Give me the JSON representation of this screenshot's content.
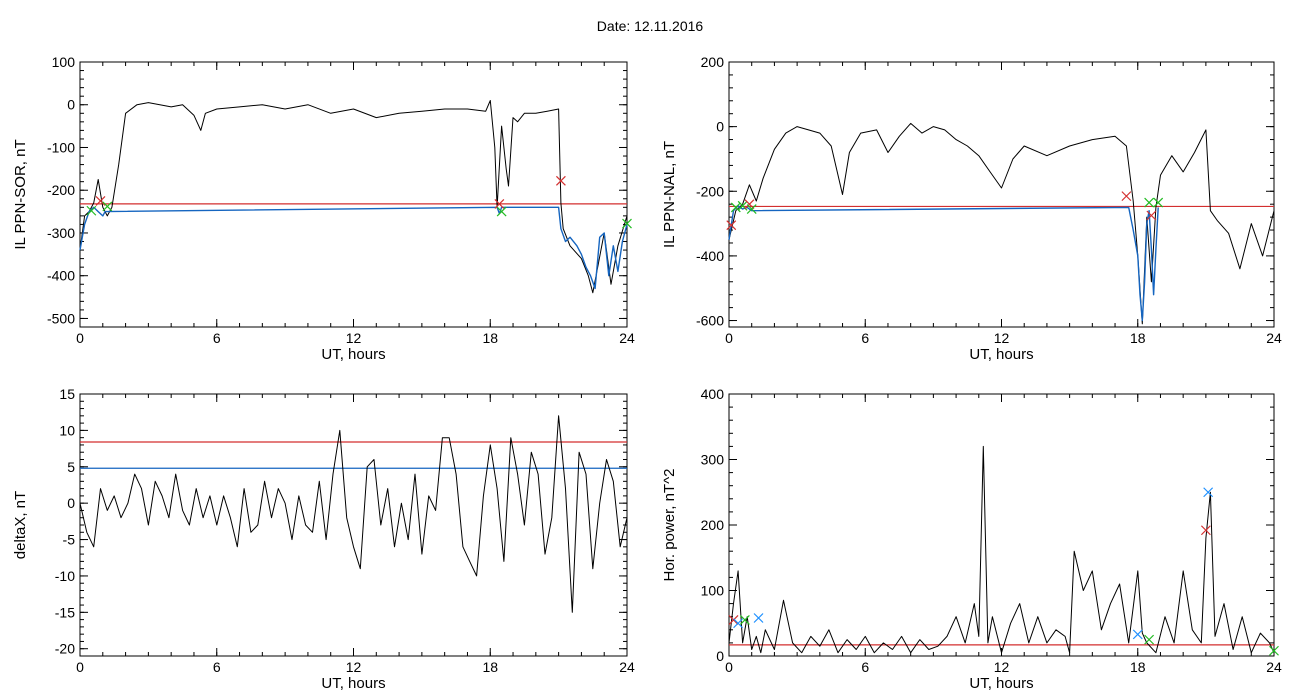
{
  "page": {
    "date_label": "Date:  12.11.2016"
  },
  "chart_data": [
    {
      "type": "line",
      "xlabel": "UT, hours",
      "ylabel": "IL PPN-SOR, nT",
      "xlim": [
        0,
        24
      ],
      "ylim": [
        -520,
        100
      ],
      "xticks": [
        0,
        6,
        12,
        18,
        24
      ],
      "yticks": [
        100,
        0,
        -100,
        -200,
        -300,
        -400,
        -500
      ],
      "grid": false,
      "legend": "none",
      "series": [
        {
          "color": "#000000",
          "x": [
            0,
            0.2,
            0.4,
            0.6,
            0.8,
            1.0,
            1.2,
            1.4,
            1.7,
            2.0,
            2.5,
            3.0,
            3.5,
            4.0,
            4.5,
            5.0,
            5.3,
            5.5,
            6.0,
            7.0,
            8.0,
            9.0,
            10.0,
            11.0,
            12.0,
            13.0,
            14.0,
            15.0,
            16.0,
            17.0,
            17.8,
            18.0,
            18.2,
            18.3,
            18.5,
            18.7,
            18.8,
            19.0,
            19.2,
            19.5,
            20.0,
            20.5,
            21.0,
            21.1,
            21.2,
            21.5,
            22.0,
            22.3,
            22.5,
            23.0,
            23.3,
            23.6,
            24.0
          ],
          "y": [
            -340,
            -260,
            -250,
            -230,
            -175,
            -240,
            -260,
            -240,
            -140,
            -20,
            0,
            5,
            0,
            -5,
            0,
            -25,
            -60,
            -20,
            -10,
            -5,
            0,
            -10,
            0,
            -20,
            -10,
            -30,
            -20,
            -15,
            -10,
            -10,
            -15,
            10,
            -100,
            -240,
            -50,
            -150,
            -190,
            -30,
            -40,
            -20,
            -20,
            -15,
            -10,
            -230,
            -290,
            -330,
            -360,
            -400,
            -440,
            -300,
            -420,
            -330,
            -260
          ]
        },
        {
          "color": "#1565c0",
          "x": [
            0,
            0.2,
            0.4,
            0.6,
            0.8,
            1.0,
            1.1,
            18.3,
            18.4,
            18.5,
            21.0,
            21.1,
            21.3,
            21.5,
            21.8,
            22.0,
            22.2,
            22.4,
            22.6,
            22.8,
            23.0,
            23.2,
            23.4,
            23.6,
            23.8,
            24.0
          ],
          "y": [
            -340,
            -280,
            -250,
            -240,
            -250,
            -260,
            -250,
            -240,
            -255,
            -240,
            -240,
            -290,
            -320,
            -310,
            -330,
            -350,
            -380,
            -400,
            -430,
            -310,
            -300,
            -400,
            -330,
            -390,
            -320,
            -280
          ]
        }
      ],
      "hlines": [
        {
          "y": -232,
          "color": "#d32f2f"
        }
      ],
      "markers": [
        {
          "x": 0.5,
          "y": -248,
          "color": "#22bb22"
        },
        {
          "x": 0.9,
          "y": -225,
          "color": "#d32f2f"
        },
        {
          "x": 1.2,
          "y": -238,
          "color": "#22bb22"
        },
        {
          "x": 18.4,
          "y": -232,
          "color": "#d32f2f"
        },
        {
          "x": 18.5,
          "y": -250,
          "color": "#22bb22"
        },
        {
          "x": 21.1,
          "y": -178,
          "color": "#d32f2f"
        },
        {
          "x": 24.0,
          "y": -278,
          "color": "#22bb22"
        }
      ]
    },
    {
      "type": "line",
      "xlabel": "UT, hours",
      "ylabel": "IL PPN-NAL, nT",
      "xlim": [
        0,
        24
      ],
      "ylim": [
        -620,
        200
      ],
      "xticks": [
        0,
        6,
        12,
        18,
        24
      ],
      "yticks": [
        200,
        0,
        -200,
        -400,
        -600
      ],
      "grid": false,
      "legend": "none",
      "series": [
        {
          "color": "#000000",
          "x": [
            0,
            0.3,
            0.6,
            0.9,
            1.2,
            1.5,
            2.0,
            2.5,
            3.0,
            3.5,
            4.0,
            4.5,
            4.8,
            5.0,
            5.3,
            5.8,
            6.5,
            7.0,
            7.5,
            8.0,
            8.5,
            9.0,
            9.5,
            10.0,
            10.5,
            11.0,
            11.5,
            12.0,
            12.5,
            13.0,
            14.0,
            15.0,
            16.0,
            17.0,
            17.5,
            17.8,
            18.0,
            18.2,
            18.4,
            18.6,
            18.8,
            19.0,
            19.5,
            20.0,
            20.5,
            21.0,
            21.2,
            21.5,
            22.0,
            22.5,
            23.0,
            23.5,
            24.0
          ],
          "y": [
            -350,
            -260,
            -240,
            -180,
            -230,
            -160,
            -70,
            -20,
            0,
            -10,
            -20,
            -60,
            -150,
            -210,
            -80,
            -20,
            -10,
            -80,
            -30,
            10,
            -20,
            0,
            -10,
            -40,
            -60,
            -90,
            -140,
            -190,
            -100,
            -60,
            -90,
            -60,
            -40,
            -30,
            -60,
            -230,
            -400,
            -610,
            -280,
            -480,
            -250,
            -150,
            -90,
            -140,
            -80,
            -10,
            -260,
            -290,
            -330,
            -440,
            -300,
            -400,
            -260
          ]
        },
        {
          "color": "#1565c0",
          "x": [
            0,
            0.2,
            0.4,
            0.6,
            0.8,
            1.0,
            17.6,
            17.8,
            18.0,
            18.1,
            18.2,
            18.3,
            18.4,
            18.5,
            18.6,
            18.7,
            18.8,
            18.9
          ],
          "y": [
            -350,
            -260,
            -245,
            -255,
            -250,
            -260,
            -250,
            -320,
            -400,
            -520,
            -600,
            -480,
            -300,
            -260,
            -380,
            -520,
            -380,
            -250
          ]
        }
      ],
      "hlines": [
        {
          "y": -247,
          "color": "#d32f2f"
        }
      ],
      "markers": [
        {
          "x": 0.1,
          "y": -305,
          "color": "#d32f2f"
        },
        {
          "x": 0.3,
          "y": -250,
          "color": "#22bb22"
        },
        {
          "x": 0.6,
          "y": -245,
          "color": "#22bb22"
        },
        {
          "x": 0.9,
          "y": -240,
          "color": "#d32f2f"
        },
        {
          "x": 1.0,
          "y": -255,
          "color": "#22bb22"
        },
        {
          "x": 17.5,
          "y": -215,
          "color": "#d32f2f"
        },
        {
          "x": 18.5,
          "y": -235,
          "color": "#22bb22"
        },
        {
          "x": 18.6,
          "y": -275,
          "color": "#d32f2f"
        },
        {
          "x": 18.9,
          "y": -235,
          "color": "#22bb22"
        }
      ]
    },
    {
      "type": "line",
      "xlabel": "UT, hours",
      "ylabel": "deltaX, nT",
      "xlim": [
        0,
        24
      ],
      "ylim": [
        -21,
        15
      ],
      "xticks": [
        0,
        6,
        12,
        18,
        24
      ],
      "yticks": [
        15,
        10,
        5,
        0,
        -5,
        -10,
        -15,
        -20
      ],
      "grid": false,
      "legend": "none",
      "series": [
        {
          "color": "#000000",
          "x": [
            0,
            0.3,
            0.6,
            0.9,
            1.2,
            1.5,
            1.8,
            2.1,
            2.4,
            2.7,
            3.0,
            3.3,
            3.6,
            3.9,
            4.2,
            4.5,
            4.8,
            5.1,
            5.4,
            5.7,
            6.0,
            6.3,
            6.6,
            6.9,
            7.2,
            7.5,
            7.8,
            8.1,
            8.4,
            8.7,
            9.0,
            9.3,
            9.6,
            9.9,
            10.2,
            10.5,
            10.8,
            11.1,
            11.4,
            11.7,
            12.0,
            12.3,
            12.6,
            12.9,
            13.2,
            13.5,
            13.8,
            14.1,
            14.4,
            14.7,
            15.0,
            15.3,
            15.6,
            15.9,
            16.2,
            16.5,
            16.8,
            17.1,
            17.4,
            17.7,
            18.0,
            18.3,
            18.6,
            18.9,
            19.2,
            19.5,
            19.8,
            20.1,
            20.4,
            20.7,
            21.0,
            21.3,
            21.6,
            21.9,
            22.2,
            22.5,
            22.8,
            23.1,
            23.4,
            23.7,
            24.0
          ],
          "y": [
            0,
            -4,
            -6,
            2,
            -1,
            1,
            -2,
            0,
            4,
            2,
            -3,
            3,
            1,
            -2,
            4,
            -1,
            -3,
            2,
            -2,
            1,
            -3,
            1,
            -2,
            -6,
            2,
            -4,
            -3,
            3,
            -2,
            2,
            0,
            -5,
            1,
            -3,
            -4,
            3,
            -5,
            4,
            10,
            -2,
            -6,
            -9,
            5,
            6,
            -3,
            2,
            -6,
            0,
            -5,
            4,
            -7,
            1,
            -1,
            9,
            9,
            4,
            -6,
            -8,
            -10,
            1,
            8,
            2,
            -8,
            9,
            4,
            -3,
            7,
            4,
            -7,
            -2,
            12,
            2,
            -15,
            7,
            4,
            -9,
            0,
            6,
            3,
            -6,
            -2
          ]
        }
      ],
      "hlines": [
        {
          "y": 8.4,
          "color": "#d32f2f"
        },
        {
          "y": 4.8,
          "color": "#1565c0"
        }
      ],
      "markers": []
    },
    {
      "type": "line",
      "xlabel": "UT, hours",
      "ylabel": "Hor. power, nT^2",
      "xlim": [
        0,
        24
      ],
      "ylim": [
        0,
        400
      ],
      "xticks": [
        0,
        6,
        12,
        18,
        24
      ],
      "yticks": [
        400,
        300,
        200,
        100,
        0
      ],
      "grid": false,
      "legend": "none",
      "series": [
        {
          "color": "#000000",
          "x": [
            0,
            0.2,
            0.4,
            0.6,
            0.8,
            1.0,
            1.2,
            1.4,
            1.6,
            2.0,
            2.4,
            2.8,
            3.2,
            3.6,
            4.0,
            4.4,
            4.8,
            5.2,
            5.6,
            6.0,
            6.4,
            6.8,
            7.2,
            7.6,
            8.0,
            8.4,
            8.8,
            9.2,
            9.6,
            10.0,
            10.4,
            10.8,
            11.0,
            11.2,
            11.4,
            11.6,
            12.0,
            12.4,
            12.8,
            13.2,
            13.6,
            14.0,
            14.4,
            14.8,
            15.0,
            15.2,
            15.6,
            16.0,
            16.4,
            16.8,
            17.2,
            17.6,
            18.0,
            18.2,
            18.4,
            18.8,
            19.2,
            19.6,
            20.0,
            20.4,
            20.8,
            21.0,
            21.2,
            21.4,
            21.8,
            22.2,
            22.6,
            23.0,
            23.4,
            23.8,
            24.0
          ],
          "y": [
            20,
            80,
            130,
            20,
            60,
            10,
            30,
            5,
            40,
            10,
            85,
            20,
            5,
            30,
            15,
            40,
            5,
            25,
            10,
            30,
            5,
            20,
            10,
            30,
            5,
            25,
            10,
            15,
            30,
            60,
            20,
            80,
            30,
            320,
            20,
            60,
            5,
            50,
            80,
            20,
            60,
            20,
            40,
            30,
            5,
            160,
            100,
            130,
            40,
            80,
            110,
            20,
            130,
            35,
            20,
            5,
            60,
            20,
            130,
            40,
            20,
            180,
            250,
            30,
            80,
            10,
            60,
            5,
            35,
            20,
            5
          ]
        }
      ],
      "hlines": [
        {
          "y": 17,
          "color": "#d32f2f"
        }
      ],
      "markers": [
        {
          "x": 0.2,
          "y": 55,
          "color": "#d32f2f"
        },
        {
          "x": 0.4,
          "y": 50,
          "color": "#1e90ff"
        },
        {
          "x": 0.7,
          "y": 55,
          "color": "#22bb22"
        },
        {
          "x": 1.3,
          "y": 58,
          "color": "#1e90ff"
        },
        {
          "x": 18.0,
          "y": 33,
          "color": "#1e90ff"
        },
        {
          "x": 18.5,
          "y": 25,
          "color": "#22bb22"
        },
        {
          "x": 21.0,
          "y": 192,
          "color": "#d32f2f"
        },
        {
          "x": 21.1,
          "y": 250,
          "color": "#1e90ff"
        },
        {
          "x": 24.0,
          "y": 8,
          "color": "#22bb22"
        }
      ]
    }
  ]
}
